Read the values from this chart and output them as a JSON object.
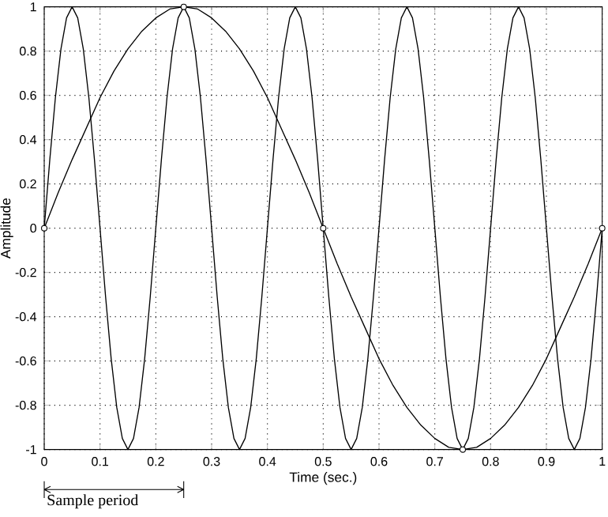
{
  "chart_data": {
    "type": "line",
    "xlabel": "Time (sec.)",
    "ylabel": "Amplitude",
    "xlim": [
      0,
      1
    ],
    "ylim": [
      -1,
      1
    ],
    "xticks": [
      0,
      0.1,
      0.2,
      0.3,
      0.4,
      0.5,
      0.6,
      0.7,
      0.8,
      0.9,
      1
    ],
    "yticks": [
      -1,
      -0.8,
      -0.6,
      -0.4,
      -0.2,
      0,
      0.2,
      0.4,
      0.6,
      0.8,
      1
    ],
    "grid": true,
    "annotations": [
      "Sample period"
    ],
    "series": [
      {
        "type": "line",
        "color": "#000000",
        "marker": "none",
        "x": [
          0,
          0.01,
          0.02,
          0.03,
          0.04,
          0.05,
          0.06,
          0.07,
          0.08,
          0.09,
          0.1,
          0.11,
          0.12,
          0.13,
          0.14,
          0.15,
          0.16,
          0.17,
          0.18,
          0.19,
          0.2,
          0.21,
          0.22,
          0.23,
          0.24,
          0.25,
          0.26,
          0.27,
          0.28,
          0.29,
          0.3,
          0.31,
          0.32,
          0.33,
          0.34,
          0.35,
          0.36,
          0.37,
          0.38,
          0.39,
          0.4,
          0.41,
          0.42,
          0.43,
          0.44,
          0.45,
          0.46,
          0.47,
          0.48,
          0.49,
          0.5,
          0.51,
          0.52,
          0.53,
          0.54,
          0.55,
          0.56,
          0.57,
          0.58,
          0.59,
          0.6,
          0.61,
          0.62,
          0.63,
          0.64,
          0.65,
          0.66,
          0.67,
          0.68,
          0.69,
          0.7,
          0.71,
          0.72,
          0.73,
          0.74,
          0.75,
          0.76,
          0.77,
          0.78,
          0.79,
          0.8,
          0.81,
          0.82,
          0.83,
          0.84,
          0.85,
          0.86,
          0.87,
          0.88,
          0.89,
          0.9,
          0.91,
          0.92,
          0.93,
          0.94,
          0.95,
          0.96,
          0.97,
          0.98,
          0.99,
          1
        ],
        "values": [
          0,
          0.31,
          0.59,
          0.81,
          0.95,
          1,
          0.95,
          0.81,
          0.59,
          0.31,
          0,
          -0.31,
          -0.59,
          -0.81,
          -0.95,
          -1,
          -0.95,
          -0.81,
          -0.59,
          -0.31,
          0,
          0.31,
          0.59,
          0.81,
          0.95,
          1,
          0.95,
          0.81,
          0.59,
          0.31,
          0,
          -0.31,
          -0.59,
          -0.81,
          -0.95,
          -1,
          -0.95,
          -0.81,
          -0.59,
          -0.31,
          0,
          0.31,
          0.59,
          0.81,
          0.95,
          1,
          0.95,
          0.81,
          0.59,
          0.31,
          0,
          -0.31,
          -0.59,
          -0.81,
          -0.95,
          -1,
          -0.95,
          -0.81,
          -0.59,
          -0.31,
          0,
          0.31,
          0.59,
          0.81,
          0.95,
          1,
          0.95,
          0.81,
          0.59,
          0.31,
          0,
          -0.31,
          -0.59,
          -0.81,
          -0.95,
          -1,
          -0.95,
          -0.81,
          -0.59,
          -0.31,
          0,
          0.31,
          0.59,
          0.81,
          0.95,
          1,
          0.95,
          0.81,
          0.59,
          0.31,
          0,
          -0.31,
          -0.59,
          -0.81,
          -0.95,
          -1,
          -0.95,
          -0.81,
          -0.59,
          -0.31,
          0
        ]
      },
      {
        "type": "line",
        "color": "#000000",
        "marker": "none",
        "x": [
          0,
          0.025,
          0.05,
          0.075,
          0.1,
          0.125,
          0.15,
          0.175,
          0.2,
          0.225,
          0.25,
          0.275,
          0.3,
          0.325,
          0.35,
          0.375,
          0.4,
          0.425,
          0.45,
          0.475,
          0.5,
          0.525,
          0.55,
          0.575,
          0.6,
          0.625,
          0.65,
          0.675,
          0.7,
          0.725,
          0.75,
          0.775,
          0.8,
          0.825,
          0.85,
          0.875,
          0.9,
          0.925,
          0.95,
          0.975,
          1
        ],
        "values": [
          0,
          0.16,
          0.31,
          0.45,
          0.59,
          0.71,
          0.81,
          0.89,
          0.95,
          0.99,
          1,
          0.99,
          0.95,
          0.89,
          0.81,
          0.71,
          0.59,
          0.45,
          0.31,
          0.16,
          0,
          -0.16,
          -0.31,
          -0.45,
          -0.59,
          -0.71,
          -0.81,
          -0.89,
          -0.95,
          -0.99,
          -1,
          -0.99,
          -0.95,
          -0.89,
          -0.81,
          -0.71,
          -0.59,
          -0.45,
          -0.31,
          -0.16,
          0
        ]
      },
      {
        "type": "scatter",
        "color": "#000000",
        "marker": "circle",
        "x": [
          0,
          0.25,
          0.5,
          0.75,
          1
        ],
        "values": [
          0,
          1,
          0,
          -1,
          0
        ]
      }
    ]
  }
}
